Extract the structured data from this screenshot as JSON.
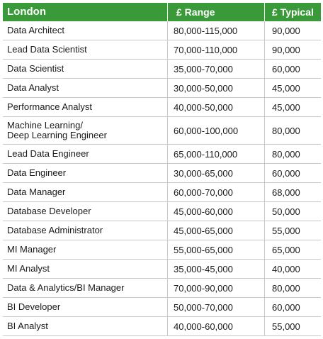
{
  "header": {
    "location": "London",
    "range": "£ Range",
    "typical": "£ Typical"
  },
  "rows": [
    {
      "title": [
        "Data Architect"
      ],
      "range": "80,000-115,000",
      "typical": "90,000"
    },
    {
      "title": [
        "Lead Data Scientist"
      ],
      "range": "70,000-110,000",
      "typical": "90,000"
    },
    {
      "title": [
        "Data Scientist"
      ],
      "range": "35,000-70,000",
      "typical": "60,000"
    },
    {
      "title": [
        "Data Analyst"
      ],
      "range": "30,000-50,000",
      "typical": "45,000"
    },
    {
      "title": [
        "Performance Analyst"
      ],
      "range": "40,000-50,000",
      "typical": "45,000"
    },
    {
      "title": [
        "Machine Learning/",
        "Deep Learning Engineer"
      ],
      "range": "60,000-100,000",
      "typical": "80,000"
    },
    {
      "title": [
        "Lead Data Engineer"
      ],
      "range": "65,000-110,000",
      "typical": "80,000"
    },
    {
      "title": [
        "Data Engineer"
      ],
      "range": "30,000-65,000",
      "typical": "60,000"
    },
    {
      "title": [
        "Data Manager"
      ],
      "range": "60,000-70,000",
      "typical": "68,000"
    },
    {
      "title": [
        "Database Developer"
      ],
      "range": "45,000-60,000",
      "typical": "50,000"
    },
    {
      "title": [
        "Database Administrator"
      ],
      "range": "45,000-65,000",
      "typical": "55,000"
    },
    {
      "title": [
        "MI Manager"
      ],
      "range": "55,000-65,000",
      "typical": "65,000"
    },
    {
      "title": [
        "MI Analyst"
      ],
      "range": "35,000-45,000",
      "typical": "40,000"
    },
    {
      "title": [
        "Data & Analytics/BI Manager"
      ],
      "range": "70,000-90,000",
      "typical": "80,000"
    },
    {
      "title": [
        "BI Developer"
      ],
      "range": "50,000-70,000",
      "typical": "60,000"
    },
    {
      "title": [
        "BI Analyst"
      ],
      "range": "40,000-60,000",
      "typical": "55,000"
    }
  ],
  "colors": {
    "header_bg": "#3a9a3a",
    "header_text": "#ffffff",
    "row_border": "#c8c8c8"
  }
}
